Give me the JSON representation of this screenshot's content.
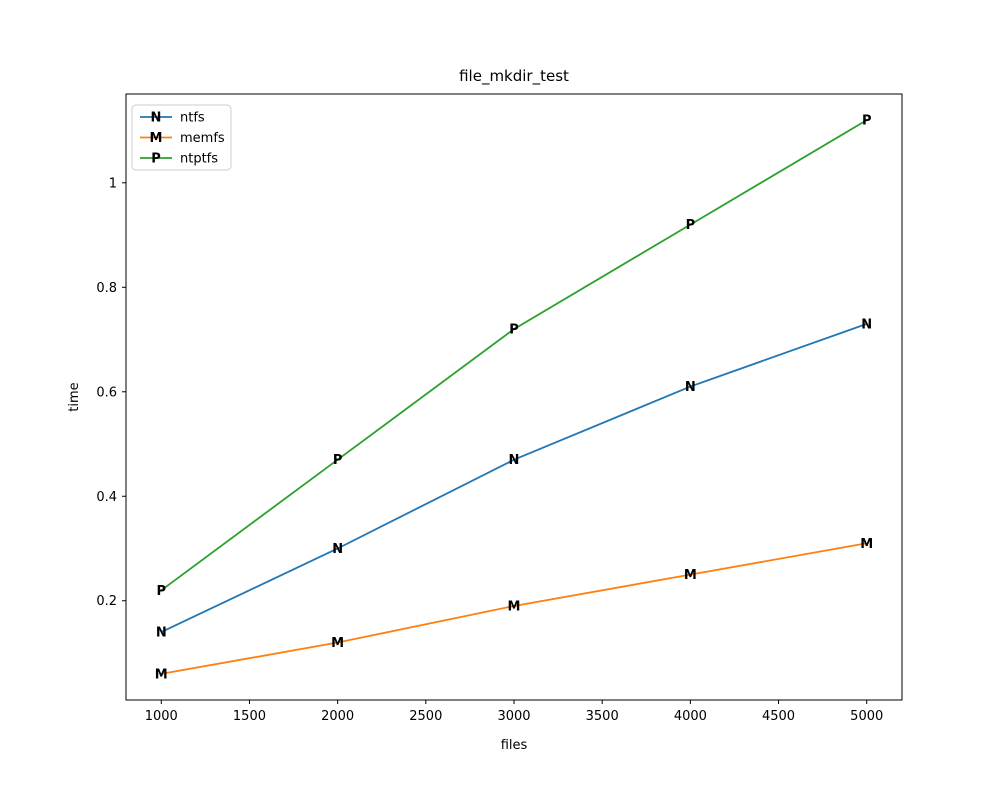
{
  "chart_data": {
    "type": "line",
    "title": "file_mkdir_test",
    "xlabel": "files",
    "ylabel": "time",
    "x": [
      1000,
      2000,
      3000,
      4000,
      5000
    ],
    "series": [
      {
        "name": "ntfs",
        "color": "#1f77b4",
        "marker": "N",
        "values": [
          0.14,
          0.3,
          0.47,
          0.61,
          0.73
        ]
      },
      {
        "name": "memfs",
        "color": "#ff7f0e",
        "marker": "M",
        "values": [
          0.06,
          0.12,
          0.19,
          0.25,
          0.31
        ]
      },
      {
        "name": "ntptfs",
        "color": "#2ca02c",
        "marker": "P",
        "values": [
          0.22,
          0.47,
          0.72,
          0.92,
          1.12
        ]
      }
    ],
    "xticks": [
      1000,
      1500,
      2000,
      2500,
      3000,
      3500,
      4000,
      4500,
      5000
    ],
    "yticks": [
      0.2,
      0.4,
      0.6,
      0.8,
      1.0
    ],
    "xlim": [
      800,
      5200
    ],
    "ylim": [
      0.01,
      1.17
    ],
    "grid": false,
    "legend_position": "upper left"
  }
}
